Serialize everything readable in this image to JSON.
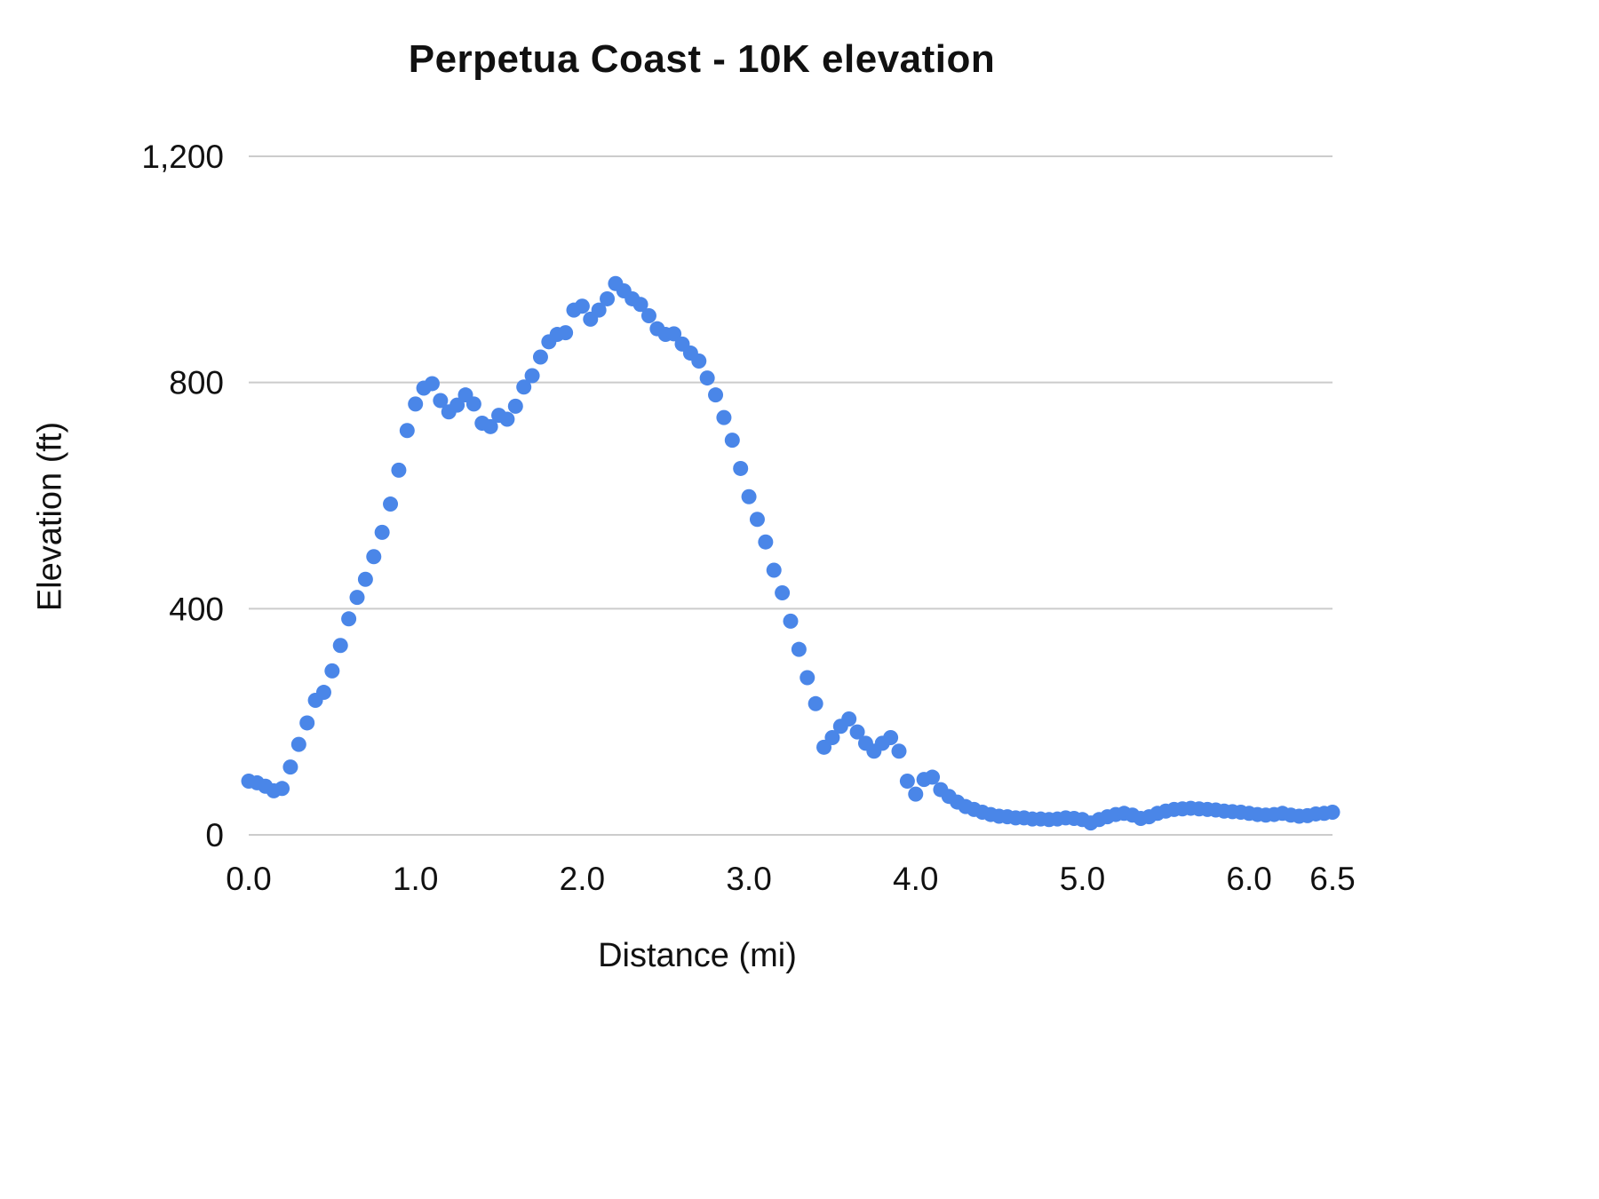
{
  "chart_data": {
    "type": "scatter",
    "title": "Perpetua Coast - 10K elevation",
    "xlabel": "Distance (mi)",
    "ylabel": "Elevation (ft)",
    "xlim": [
      0,
      6.5
    ],
    "ylim": [
      0,
      1200
    ],
    "grid": "horizontal-only",
    "legend": "none",
    "point_color": "#4a86e8",
    "grid_color": "#cccccc",
    "x_ticks": [
      {
        "v": 0.0,
        "label": "0.0"
      },
      {
        "v": 1.0,
        "label": "1.0"
      },
      {
        "v": 2.0,
        "label": "2.0"
      },
      {
        "v": 3.0,
        "label": "3.0"
      },
      {
        "v": 4.0,
        "label": "4.0"
      },
      {
        "v": 5.0,
        "label": "5.0"
      },
      {
        "v": 6.0,
        "label": "6.0"
      },
      {
        "v": 6.5,
        "label": "6.5"
      }
    ],
    "y_ticks": [
      {
        "v": 0,
        "label": "0"
      },
      {
        "v": 400,
        "label": "400"
      },
      {
        "v": 800,
        "label": "800"
      },
      {
        "v": 1200,
        "label": "1,200"
      }
    ],
    "points": [
      [
        0.0,
        95
      ],
      [
        0.05,
        92
      ],
      [
        0.1,
        86
      ],
      [
        0.15,
        78
      ],
      [
        0.2,
        82
      ],
      [
        0.25,
        120
      ],
      [
        0.3,
        160
      ],
      [
        0.35,
        198
      ],
      [
        0.4,
        238
      ],
      [
        0.45,
        252
      ],
      [
        0.5,
        290
      ],
      [
        0.55,
        335
      ],
      [
        0.6,
        382
      ],
      [
        0.65,
        420
      ],
      [
        0.7,
        452
      ],
      [
        0.75,
        492
      ],
      [
        0.8,
        535
      ],
      [
        0.85,
        585
      ],
      [
        0.9,
        645
      ],
      [
        0.95,
        715
      ],
      [
        1.0,
        762
      ],
      [
        1.05,
        790
      ],
      [
        1.1,
        798
      ],
      [
        1.15,
        768
      ],
      [
        1.2,
        748
      ],
      [
        1.25,
        760
      ],
      [
        1.3,
        778
      ],
      [
        1.35,
        762
      ],
      [
        1.4,
        728
      ],
      [
        1.45,
        722
      ],
      [
        1.5,
        742
      ],
      [
        1.55,
        735
      ],
      [
        1.6,
        758
      ],
      [
        1.65,
        792
      ],
      [
        1.7,
        812
      ],
      [
        1.75,
        845
      ],
      [
        1.8,
        872
      ],
      [
        1.85,
        885
      ],
      [
        1.9,
        888
      ],
      [
        1.95,
        928
      ],
      [
        2.0,
        935
      ],
      [
        2.05,
        912
      ],
      [
        2.1,
        928
      ],
      [
        2.15,
        948
      ],
      [
        2.2,
        975
      ],
      [
        2.25,
        962
      ],
      [
        2.3,
        948
      ],
      [
        2.35,
        938
      ],
      [
        2.4,
        918
      ],
      [
        2.45,
        895
      ],
      [
        2.5,
        885
      ],
      [
        2.55,
        886
      ],
      [
        2.6,
        868
      ],
      [
        2.65,
        852
      ],
      [
        2.7,
        838
      ],
      [
        2.75,
        808
      ],
      [
        2.8,
        778
      ],
      [
        2.85,
        738
      ],
      [
        2.9,
        698
      ],
      [
        2.95,
        648
      ],
      [
        3.0,
        598
      ],
      [
        3.05,
        558
      ],
      [
        3.1,
        518
      ],
      [
        3.15,
        468
      ],
      [
        3.2,
        428
      ],
      [
        3.25,
        378
      ],
      [
        3.3,
        328
      ],
      [
        3.35,
        278
      ],
      [
        3.4,
        232
      ],
      [
        3.45,
        155
      ],
      [
        3.5,
        172
      ],
      [
        3.55,
        192
      ],
      [
        3.6,
        205
      ],
      [
        3.65,
        182
      ],
      [
        3.7,
        162
      ],
      [
        3.75,
        148
      ],
      [
        3.8,
        162
      ],
      [
        3.85,
        172
      ],
      [
        3.9,
        148
      ],
      [
        3.95,
        95
      ],
      [
        4.0,
        72
      ],
      [
        4.05,
        98
      ],
      [
        4.1,
        102
      ],
      [
        4.15,
        80
      ],
      [
        4.2,
        68
      ],
      [
        4.25,
        58
      ],
      [
        4.3,
        50
      ],
      [
        4.35,
        45
      ],
      [
        4.4,
        40
      ],
      [
        4.45,
        36
      ],
      [
        4.5,
        33
      ],
      [
        4.55,
        32
      ],
      [
        4.6,
        30
      ],
      [
        4.65,
        30
      ],
      [
        4.7,
        28
      ],
      [
        4.75,
        28
      ],
      [
        4.8,
        27
      ],
      [
        4.85,
        28
      ],
      [
        4.9,
        30
      ],
      [
        4.95,
        29
      ],
      [
        5.0,
        27
      ],
      [
        5.05,
        21
      ],
      [
        5.1,
        27
      ],
      [
        5.15,
        32
      ],
      [
        5.2,
        36
      ],
      [
        5.25,
        38
      ],
      [
        5.3,
        35
      ],
      [
        5.35,
        29
      ],
      [
        5.4,
        32
      ],
      [
        5.45,
        38
      ],
      [
        5.5,
        42
      ],
      [
        5.55,
        45
      ],
      [
        5.6,
        46
      ],
      [
        5.65,
        47
      ],
      [
        5.7,
        46
      ],
      [
        5.75,
        45
      ],
      [
        5.8,
        44
      ],
      [
        5.85,
        42
      ],
      [
        5.9,
        41
      ],
      [
        5.95,
        40
      ],
      [
        6.0,
        38
      ],
      [
        6.05,
        36
      ],
      [
        6.1,
        35
      ],
      [
        6.15,
        36
      ],
      [
        6.2,
        38
      ],
      [
        6.25,
        35
      ],
      [
        6.3,
        33
      ],
      [
        6.35,
        34
      ],
      [
        6.4,
        37
      ],
      [
        6.45,
        38
      ],
      [
        6.5,
        40
      ]
    ]
  }
}
